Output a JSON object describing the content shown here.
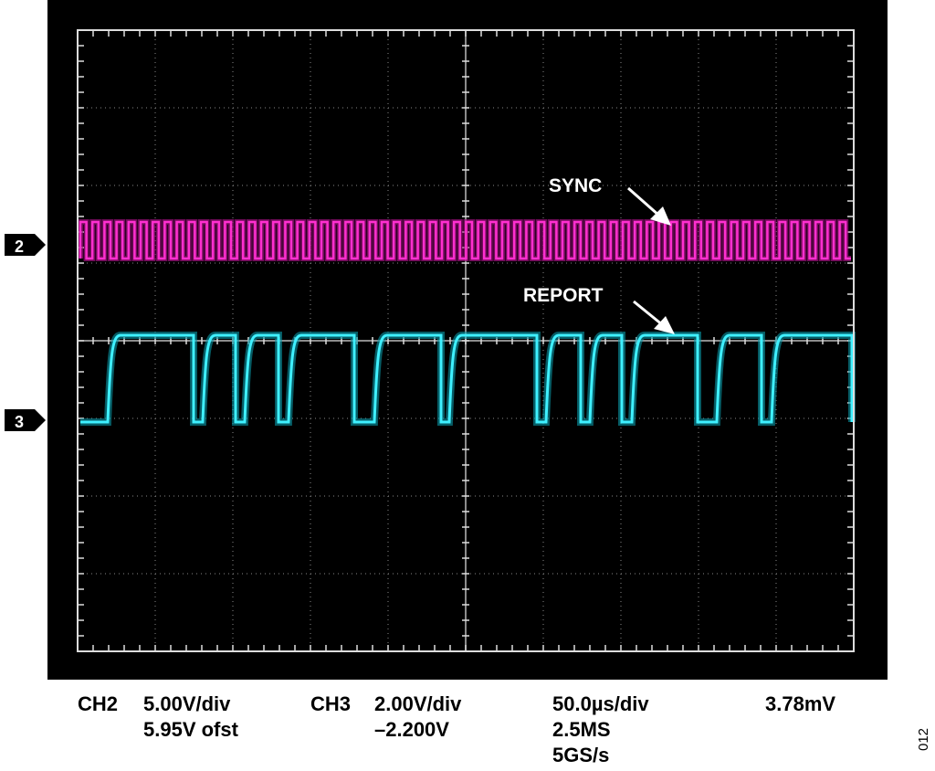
{
  "markers": [
    "2",
    "3"
  ],
  "labels": {
    "sync": "SYNC",
    "report": "REPORT"
  },
  "readouts": {
    "ch2": {
      "name": "CH2",
      "scale": "5.00V/div",
      "offset": "5.95V ofst"
    },
    "ch3": {
      "name": "CH3",
      "scale": "2.00V/div",
      "offset": "–2.200V"
    },
    "time": {
      "scale": "50.0µs/div",
      "record": "2.5MS",
      "rate": "5GS/s"
    },
    "level": "3.78mV"
  },
  "figure_id": "012"
}
